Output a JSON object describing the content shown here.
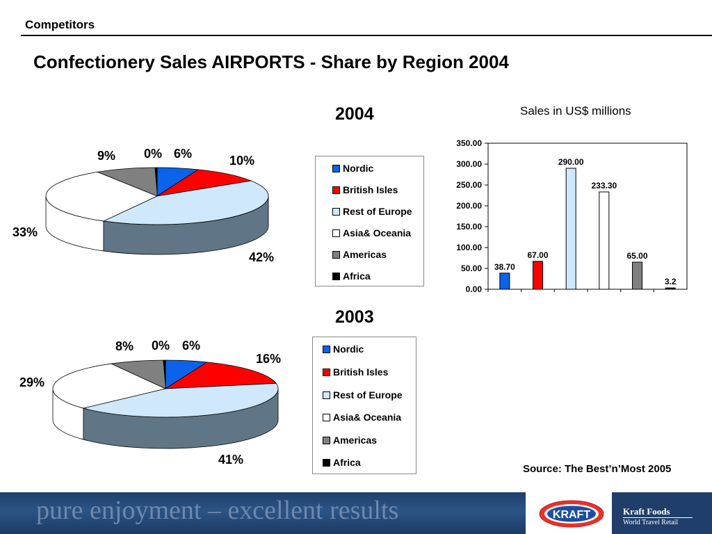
{
  "header": {
    "section": "Competitors",
    "title": "Confectionery Sales AIRPORTS - Share by Region 2004"
  },
  "colors": {
    "Nordic": "#0a63e8",
    "British Isles": "#ff0000",
    "Rest of Europe": "#cfe8fb",
    "Asia& Oceania": "#ffffff",
    "Americas": "#808080",
    "Africa": "#000000"
  },
  "chart_data": [
    {
      "type": "pie",
      "title": "2004",
      "categories": [
        "Nordic",
        "British Isles",
        "Rest of Europe",
        "Asia& Oceania",
        "Americas",
        "Africa"
      ],
      "values": [
        6,
        10,
        42,
        33,
        9,
        0
      ],
      "data_labels": [
        "6%",
        "10%",
        "42%",
        "33%",
        "9%",
        "0%"
      ],
      "legend": {
        "position": "right",
        "items": [
          "Nordic",
          "British Isles",
          "Rest of Europe",
          "Asia& Oceania",
          "Americas",
          "Africa"
        ]
      }
    },
    {
      "type": "pie",
      "title": "2003",
      "categories": [
        "Nordic",
        "British Isles",
        "Rest of Europe",
        "Asia& Oceania",
        "Americas",
        "Africa"
      ],
      "values": [
        6,
        16,
        41,
        29,
        8,
        0
      ],
      "data_labels": [
        "6%",
        "16%",
        "41%",
        "29%",
        "8%",
        "0%"
      ],
      "legend": {
        "position": "right",
        "items": [
          "Nordic",
          "British Isles",
          "Rest of Europe",
          "Asia& Oceania",
          "Americas",
          "Africa"
        ]
      }
    },
    {
      "type": "bar",
      "title": "Sales in US$ millions",
      "categories": [
        "Nordic",
        "British Isles",
        "Rest of Europe",
        "Asia& Oceania",
        "Americas",
        "Africa"
      ],
      "values": [
        38.7,
        67.0,
        290.0,
        233.3,
        65.0,
        3.2
      ],
      "data_labels": [
        "38.70",
        "67.00",
        "290.00",
        "233.30",
        "65.00",
        "3.2"
      ],
      "ylim": [
        0,
        350
      ],
      "y_ticks": [
        "0.00",
        "50.00",
        "100.00",
        "150.00",
        "200.00",
        "250.00",
        "300.00",
        "350.00"
      ],
      "grid": false
    }
  ],
  "source": "Source: The Best’n’Most 2005",
  "footer": {
    "tagline": "pure enjoyment – excellent results",
    "logo_text": "KRAFT",
    "brand_name": "Kraft Foods",
    "brand_sub": "World Travel Retail"
  }
}
